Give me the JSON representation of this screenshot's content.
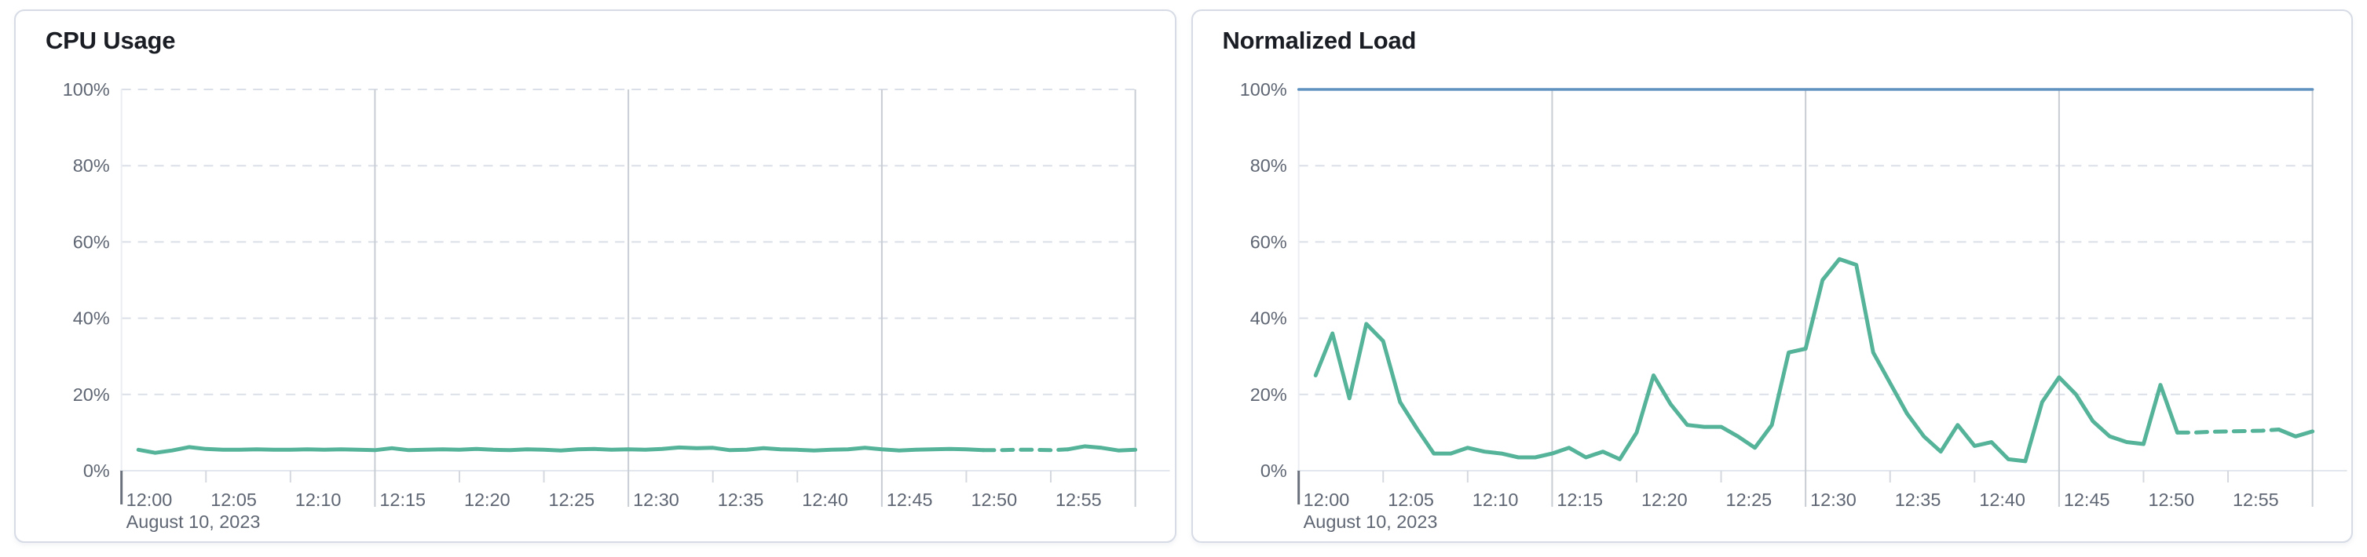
{
  "page": {
    "background": "#ffffff",
    "date_label": "August 10, 2023"
  },
  "chart_data": [
    {
      "type": "line",
      "title": "CPU Usage",
      "grid": "dashed-horizontal",
      "legend": "none",
      "x_axis": {
        "domain_minutes": [
          0,
          60
        ],
        "tick_minutes": [
          0,
          5,
          10,
          15,
          20,
          25,
          30,
          35,
          40,
          45,
          50,
          55
        ],
        "tick_labels": [
          "12:00",
          "12:05",
          "12:10",
          "12:15",
          "12:20",
          "12:25",
          "12:30",
          "12:35",
          "12:40",
          "12:45",
          "12:50",
          "12:55"
        ],
        "date_label": "August 10, 2023",
        "major_gridline_minutes": [
          15,
          30,
          45,
          60
        ]
      },
      "y_axis": {
        "range": [
          0,
          100
        ],
        "tick_values": [
          0,
          20,
          40,
          60,
          80,
          100
        ],
        "tick_labels": [
          "0%",
          "20%",
          "40%",
          "60%",
          "80%",
          "100%"
        ]
      },
      "series": [
        {
          "name": "cpu-usage",
          "color": "#54b399",
          "line_width": 5,
          "segments": [
            {
              "from": 1,
              "to": 51,
              "dash": false
            },
            {
              "from": 51,
              "to": 56,
              "dash": true
            },
            {
              "from": 56,
              "to": 60,
              "dash": false
            }
          ],
          "points": [
            [
              1,
              5.5
            ],
            [
              2,
              4.7
            ],
            [
              3,
              5.3
            ],
            [
              4,
              6.2
            ],
            [
              5,
              5.7
            ],
            [
              6,
              5.5
            ],
            [
              7,
              5.5
            ],
            [
              8,
              5.6
            ],
            [
              9,
              5.5
            ],
            [
              10,
              5.5
            ],
            [
              11,
              5.6
            ],
            [
              12,
              5.5
            ],
            [
              13,
              5.6
            ],
            [
              14,
              5.5
            ],
            [
              15,
              5.4
            ],
            [
              16,
              5.9
            ],
            [
              17,
              5.4
            ],
            [
              18,
              5.5
            ],
            [
              19,
              5.6
            ],
            [
              20,
              5.5
            ],
            [
              21,
              5.7
            ],
            [
              22,
              5.5
            ],
            [
              23,
              5.4
            ],
            [
              24,
              5.6
            ],
            [
              25,
              5.5
            ],
            [
              26,
              5.3
            ],
            [
              27,
              5.6
            ],
            [
              28,
              5.7
            ],
            [
              29,
              5.5
            ],
            [
              30,
              5.6
            ],
            [
              31,
              5.5
            ],
            [
              32,
              5.7
            ],
            [
              33,
              6.1
            ],
            [
              34,
              5.9
            ],
            [
              35,
              6.0
            ],
            [
              36,
              5.4
            ],
            [
              37,
              5.5
            ],
            [
              38,
              5.9
            ],
            [
              39,
              5.6
            ],
            [
              40,
              5.5
            ],
            [
              41,
              5.3
            ],
            [
              42,
              5.5
            ],
            [
              43,
              5.6
            ],
            [
              44,
              6.0
            ],
            [
              45,
              5.6
            ],
            [
              46,
              5.3
            ],
            [
              47,
              5.5
            ],
            [
              48,
              5.6
            ],
            [
              49,
              5.7
            ],
            [
              50,
              5.6
            ],
            [
              51,
              5.4
            ],
            [
              52,
              5.4
            ],
            [
              53,
              5.5
            ],
            [
              54,
              5.5
            ],
            [
              55,
              5.4
            ],
            [
              56,
              5.6
            ],
            [
              57,
              6.4
            ],
            [
              58,
              6.0
            ],
            [
              59,
              5.3
            ],
            [
              60,
              5.5
            ]
          ]
        }
      ]
    },
    {
      "type": "line",
      "title": "Normalized Load",
      "grid": "dashed-horizontal",
      "legend": "none",
      "x_axis": {
        "domain_minutes": [
          0,
          60
        ],
        "tick_minutes": [
          0,
          5,
          10,
          15,
          20,
          25,
          30,
          35,
          40,
          45,
          50,
          55
        ],
        "tick_labels": [
          "12:00",
          "12:05",
          "12:10",
          "12:15",
          "12:20",
          "12:25",
          "12:30",
          "12:35",
          "12:40",
          "12:45",
          "12:50",
          "12:55"
        ],
        "date_label": "August 10, 2023",
        "major_gridline_minutes": [
          15,
          30,
          45,
          60
        ]
      },
      "y_axis": {
        "range": [
          0,
          100
        ],
        "tick_values": [
          0,
          20,
          40,
          60,
          80,
          100
        ],
        "tick_labels": [
          "0%",
          "20%",
          "40%",
          "60%",
          "80%",
          "100%"
        ]
      },
      "series": [
        {
          "name": "threshold-100",
          "color": "#6092c0",
          "line_width": 3.5,
          "segments": [
            {
              "from": 0,
              "to": 60,
              "dash": false
            }
          ],
          "points": [
            [
              0,
              100
            ],
            [
              60,
              100
            ]
          ]
        },
        {
          "name": "normalized-load",
          "color": "#54b399",
          "line_width": 5,
          "segments": [
            {
              "from": 1,
              "to": 52,
              "dash": false
            },
            {
              "from": 52,
              "to": 58,
              "dash": true
            },
            {
              "from": 58,
              "to": 60,
              "dash": false
            }
          ],
          "points": [
            [
              1,
              25
            ],
            [
              2,
              36
            ],
            [
              3,
              19
            ],
            [
              4,
              38.5
            ],
            [
              5,
              34
            ],
            [
              6,
              18
            ],
            [
              7,
              11
            ],
            [
              8,
              4.5
            ],
            [
              9,
              4.5
            ],
            [
              10,
              6
            ],
            [
              11,
              5
            ],
            [
              12,
              4.5
            ],
            [
              13,
              3.5
            ],
            [
              14,
              3.5
            ],
            [
              15,
              4.5
            ],
            [
              16,
              6
            ],
            [
              17,
              3.5
            ],
            [
              18,
              5
            ],
            [
              19,
              3
            ],
            [
              20,
              10
            ],
            [
              21,
              25
            ],
            [
              22,
              17.5
            ],
            [
              23,
              12
            ],
            [
              24,
              11.5
            ],
            [
              25,
              11.5
            ],
            [
              26,
              9
            ],
            [
              27,
              6
            ],
            [
              28,
              12
            ],
            [
              29,
              31
            ],
            [
              30,
              32
            ],
            [
              31,
              50
            ],
            [
              32,
              55.5
            ],
            [
              33,
              54
            ],
            [
              34,
              31
            ],
            [
              35,
              23
            ],
            [
              36,
              15
            ],
            [
              37,
              9
            ],
            [
              38,
              5
            ],
            [
              39,
              12
            ],
            [
              40,
              6.5
            ],
            [
              41,
              7.5
            ],
            [
              42,
              3
            ],
            [
              43,
              2.5
            ],
            [
              44,
              18
            ],
            [
              45,
              24.5
            ],
            [
              46,
              20
            ],
            [
              47,
              13
            ],
            [
              48,
              9
            ],
            [
              49,
              7.5
            ],
            [
              50,
              7
            ],
            [
              51,
              22.5
            ],
            [
              52,
              10
            ],
            [
              53,
              10
            ],
            [
              54,
              10.2
            ],
            [
              55,
              10.3
            ],
            [
              56,
              10.4
            ],
            [
              57,
              10.5
            ],
            [
              58,
              10.8
            ],
            [
              59,
              9
            ],
            [
              60,
              10.3
            ]
          ]
        }
      ]
    }
  ]
}
